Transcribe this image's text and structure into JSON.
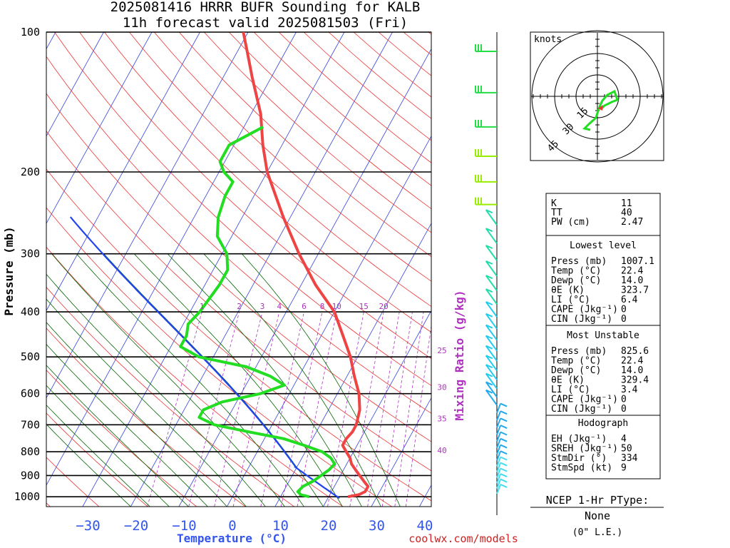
{
  "chart_data": {
    "type": "line",
    "title": "2025081416 HRRR BUFR Sounding for KALB",
    "subtitle": "11h forecast valid 2025081503 (Fri)",
    "xlabel": "Temperature (°C)",
    "ylabel": "Pressure (mb)",
    "y_scale": "log",
    "y_ticks": [
      "100",
      "200",
      "300",
      "400",
      "500",
      "600",
      "700",
      "800",
      "900",
      "1000"
    ],
    "x_ticks": [
      "−30",
      "−20",
      "−10",
      "0",
      "10",
      "20",
      "30",
      "40"
    ],
    "mixing_ratio_label": "Mixing Ratio (g/kg)",
    "mixing_ratio_ticks": [
      "1",
      "2",
      "3",
      "4",
      "6",
      "8",
      "10",
      "15",
      "20",
      "25",
      "30",
      "35",
      "40"
    ],
    "series": [
      {
        "role": "temperature",
        "color": "#ee4444",
        "points": [
          [
            1000,
            24
          ],
          [
            990,
            26
          ],
          [
            975,
            27
          ],
          [
            950,
            27
          ],
          [
            925,
            25.5
          ],
          [
            900,
            24
          ],
          [
            875,
            22.5
          ],
          [
            850,
            21
          ],
          [
            825,
            20
          ],
          [
            800,
            18.5
          ],
          [
            775,
            17
          ],
          [
            750,
            17
          ],
          [
            725,
            17.5
          ],
          [
            700,
            17.5
          ],
          [
            650,
            16.5
          ],
          [
            600,
            14.5
          ],
          [
            550,
            11.5
          ],
          [
            500,
            8.5
          ],
          [
            450,
            4.5
          ],
          [
            400,
            0
          ],
          [
            350,
            -7
          ],
          [
            300,
            -14
          ],
          [
            250,
            -21.5
          ],
          [
            200,
            -30
          ],
          [
            175,
            -34
          ],
          [
            150,
            -38
          ],
          [
            125,
            -44
          ],
          [
            110,
            -48
          ],
          [
            100,
            -51
          ]
        ]
      },
      {
        "role": "dewpoint",
        "color": "#22dd22",
        "points": [
          [
            1000,
            16
          ],
          [
            990,
            14
          ],
          [
            975,
            13
          ],
          [
            950,
            13.5
          ],
          [
            925,
            15
          ],
          [
            900,
            16
          ],
          [
            875,
            17
          ],
          [
            850,
            17.5
          ],
          [
            825,
            16
          ],
          [
            800,
            13.5
          ],
          [
            775,
            9
          ],
          [
            750,
            4
          ],
          [
            725,
            -4
          ],
          [
            700,
            -12
          ],
          [
            675,
            -16
          ],
          [
            650,
            -16
          ],
          [
            625,
            -13
          ],
          [
            600,
            -6
          ],
          [
            575,
            -2
          ],
          [
            550,
            -6
          ],
          [
            525,
            -12
          ],
          [
            500,
            -23
          ],
          [
            475,
            -28
          ],
          [
            450,
            -28
          ],
          [
            425,
            -29
          ],
          [
            400,
            -28
          ],
          [
            350,
            -27
          ],
          [
            325,
            -27
          ],
          [
            300,
            -29
          ],
          [
            275,
            -33
          ],
          [
            250,
            -35
          ],
          [
            225,
            -36
          ],
          [
            210,
            -36
          ],
          [
            200,
            -39
          ],
          [
            190,
            -41
          ],
          [
            175,
            -41
          ],
          [
            160,
            -36
          ]
        ]
      }
    ],
    "hodograph_title": "knots",
    "hodograph_rings": [
      "15",
      "30",
      "45"
    ],
    "legend": "none",
    "grid": true
  },
  "indices": {
    "top": [
      [
        "K",
        "11"
      ],
      [
        "TT",
        "40"
      ],
      [
        "PW (cm)",
        "2.47"
      ]
    ],
    "lowest_level": {
      "header": "Lowest level",
      "rows": [
        [
          "Press (mb)",
          "1007.1"
        ],
        [
          "Temp (°C)",
          "22.4"
        ],
        [
          "Dewp (°C)",
          "14.0"
        ],
        [
          "θE (K)",
          "323.7"
        ],
        [
          "LI (°C)",
          "6.4"
        ],
        [
          "CAPE (Jkg⁻¹)",
          "0"
        ],
        [
          "CIN (Jkg⁻¹)",
          "0"
        ]
      ]
    },
    "most_unstable": {
      "header": "Most Unstable",
      "rows": [
        [
          "Press (mb)",
          "825.6"
        ],
        [
          "Temp (°C)",
          "22.4"
        ],
        [
          "Dewp (°C)",
          "14.0"
        ],
        [
          "θE (K)",
          "329.4"
        ],
        [
          "LI (°C)",
          "3.4"
        ],
        [
          "CAPE (Jkg⁻¹)",
          "0"
        ],
        [
          "CIN (Jkg⁻¹)",
          "0"
        ]
      ]
    },
    "hodograph": {
      "header": "Hodograph",
      "rows": [
        [
          "EH (Jkg⁻¹)",
          "4"
        ],
        [
          "SREH (Jkg⁻¹)",
          "50"
        ],
        [
          "StmDir (°)",
          "334"
        ],
        [
          "StmSpd (kt)",
          "9"
        ]
      ]
    }
  },
  "ptype": {
    "title": "NCEP 1-Hr PType:",
    "value": "None",
    "accum": "(0\" L.E.)"
  },
  "credit": "coolwx.com/models",
  "colors": {
    "temperature": "#ee4444",
    "dewpoint": "#22dd22",
    "isotherm": "#3344dd",
    "dry_adiabat": "#ee3333",
    "moist_adiabat": "#006600",
    "mixing_ratio": "#b030c0",
    "parcel": "#2244ee"
  }
}
